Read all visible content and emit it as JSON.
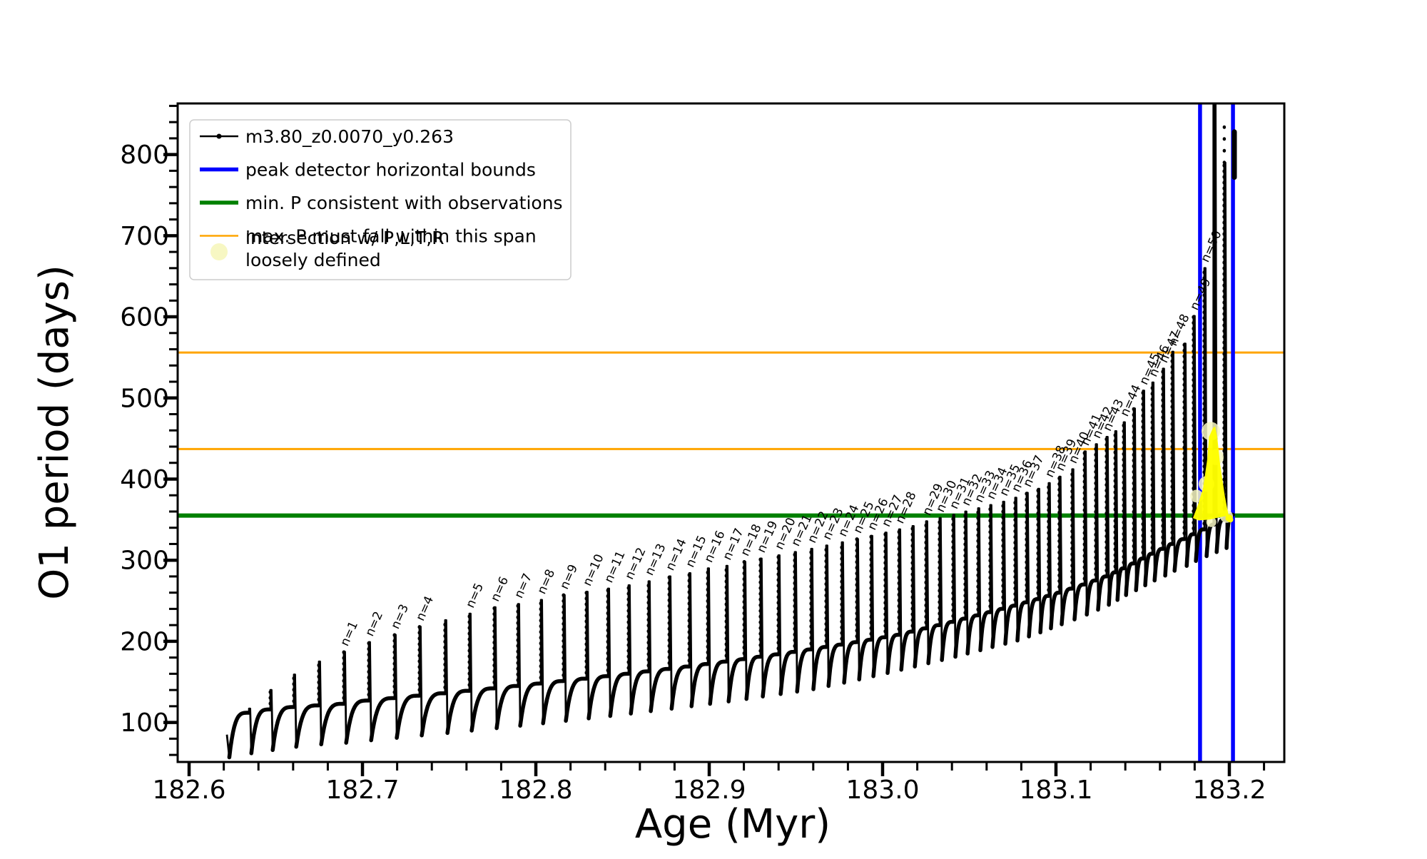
{
  "chart_data": {
    "type": "line",
    "title": "",
    "xlabel": "Age (Myr)",
    "ylabel": "O1 period (days)",
    "xlim": [
      182.5934,
      183.2317
    ],
    "ylim": [
      51.3,
      863
    ],
    "x_ticks": [
      182.6,
      182.7,
      182.8,
      182.9,
      183.0,
      183.1,
      183.2
    ],
    "x_minor_step": 0.02,
    "y_ticks": [
      100,
      200,
      300,
      400,
      500,
      600,
      700,
      800
    ],
    "y_minor_step": 20,
    "grid": false,
    "series_label": "m3.80_z0.0070_y0.263",
    "colors": {
      "track": "#000000",
      "peak_bounds": "#0000ff",
      "min_p": "#008000",
      "max_p": "#ffa500",
      "intersection": "#ffff00",
      "intersection_pale": "#f7f7c3"
    },
    "hlines": [
      {
        "value": 556,
        "color": "#ffa500",
        "lw": 3,
        "role": "max. P span upper"
      },
      {
        "value": 437,
        "color": "#ffa500",
        "lw": 3,
        "role": "max. P span lower"
      },
      {
        "value": 355,
        "color": "#008000",
        "lw": 6,
        "role": "min. P consistent with observations"
      }
    ],
    "vlines": [
      {
        "value": 183.1831,
        "color": "#0000ff",
        "lw": 5.5,
        "role": "peak detector left bound"
      },
      {
        "value": 183.2021,
        "color": "#0000ff",
        "lw": 5.5,
        "role": "peak detector right bound"
      }
    ],
    "start": {
      "age": 182.6218,
      "period": 85,
      "dip": 57
    },
    "pulse_format": [
      "age_Myr",
      "baseline_before",
      "peak",
      "dip_after",
      "label"
    ],
    "pulses": [
      [
        182.6346,
        112,
        117,
        62,
        ""
      ],
      [
        182.6469,
        116,
        140,
        66,
        ""
      ],
      [
        182.6605,
        119,
        159,
        70,
        ""
      ],
      [
        182.6749,
        121,
        175,
        73,
        ""
      ],
      [
        182.6893,
        123,
        187,
        75,
        "n=1"
      ],
      [
        182.7037,
        127,
        199,
        78,
        "n=2"
      ],
      [
        182.7185,
        130,
        208,
        81,
        "n=3"
      ],
      [
        182.7329,
        133,
        218,
        84,
        "n=4"
      ],
      [
        182.7477,
        136,
        226,
        87,
        ""
      ],
      [
        182.7617,
        139,
        234,
        90,
        "n=5"
      ],
      [
        182.7761,
        142,
        242,
        93,
        "n=6"
      ],
      [
        182.7897,
        145,
        246,
        96,
        "n=7"
      ],
      [
        182.8029,
        148,
        251,
        99,
        "n=8"
      ],
      [
        182.816,
        151,
        257,
        102,
        "n=9"
      ],
      [
        182.8292,
        154,
        261,
        105,
        "n=10"
      ],
      [
        182.8416,
        157,
        265,
        108,
        "n=11"
      ],
      [
        182.8535,
        160,
        269,
        111,
        "n=12"
      ],
      [
        182.865,
        163,
        274,
        114,
        "n=13"
      ],
      [
        182.877,
        166,
        280,
        117,
        "n=14"
      ],
      [
        182.8885,
        169,
        284,
        120,
        "n=15"
      ],
      [
        182.8992,
        172,
        290,
        123,
        "n=16"
      ],
      [
        182.9099,
        175,
        293,
        126,
        "n=17"
      ],
      [
        182.9202,
        178,
        298,
        129,
        "n=18"
      ],
      [
        182.9296,
        181,
        302,
        132,
        "n=19"
      ],
      [
        182.9399,
        184,
        306,
        135,
        "n=20"
      ],
      [
        182.9494,
        187,
        310,
        138,
        "n=21"
      ],
      [
        182.9588,
        190,
        314,
        141,
        "n=22"
      ],
      [
        182.9675,
        193,
        318,
        145,
        "n=23"
      ],
      [
        182.9765,
        196,
        322,
        149,
        "n=24"
      ],
      [
        182.9852,
        199,
        326,
        153,
        "n=25"
      ],
      [
        182.9934,
        202,
        330,
        157,
        "n=26"
      ],
      [
        183.0016,
        205,
        334,
        161,
        "n=27"
      ],
      [
        183.0095,
        208,
        338,
        165,
        "n=28"
      ],
      [
        183.0173,
        212,
        342,
        169,
        ""
      ],
      [
        183.0251,
        216,
        348,
        173,
        "n=29"
      ],
      [
        183.0329,
        220,
        352,
        177,
        "n=30"
      ],
      [
        183.0407,
        224,
        356,
        181,
        "n=31"
      ],
      [
        183.0477,
        228,
        360,
        185,
        "n=32"
      ],
      [
        183.0551,
        232,
        364,
        189,
        "n=33"
      ],
      [
        183.0621,
        236,
        368,
        193,
        "n=34"
      ],
      [
        183.0695,
        240,
        372,
        197,
        "n=35"
      ],
      [
        183.0765,
        244,
        377,
        201,
        "n=36"
      ],
      [
        183.0831,
        248,
        383,
        206,
        "n=37"
      ],
      [
        183.0897,
        252,
        388,
        211,
        ""
      ],
      [
        183.0958,
        256,
        395,
        216,
        "n=38"
      ],
      [
        183.102,
        260,
        403,
        221,
        "n=39"
      ],
      [
        183.1094,
        265,
        412,
        227,
        "n=40"
      ],
      [
        183.1165,
        270,
        434,
        233,
        "n=41"
      ],
      [
        183.123,
        275,
        443,
        239,
        "n=42"
      ],
      [
        183.1292,
        280,
        452,
        245,
        "n=43"
      ],
      [
        183.1342,
        285,
        459,
        251,
        ""
      ],
      [
        183.1391,
        290,
        470,
        257,
        "n=44"
      ],
      [
        183.1449,
        296,
        487,
        263,
        ""
      ],
      [
        183.1502,
        302,
        509,
        269,
        "n=45"
      ],
      [
        183.1556,
        308,
        519,
        275,
        "n=46"
      ],
      [
        183.1617,
        314,
        536,
        281,
        "n=47"
      ],
      [
        183.1671,
        320,
        557,
        287,
        "n=48"
      ],
      [
        183.1741,
        326,
        567,
        293,
        ""
      ],
      [
        183.1794,
        332,
        601,
        299,
        "n=49"
      ],
      [
        183.1856,
        338,
        660,
        305,
        "n=50"
      ],
      [
        183.1914,
        344,
        862,
        310,
        ""
      ],
      [
        183.1971,
        350,
        790,
        315,
        ""
      ]
    ],
    "track_end": {
      "age": 183.2021,
      "period": 356
    },
    "sparse_dots_above": {
      "age": 183.1971,
      "from": 790,
      "to": 848
    },
    "clipped_top_segment": {
      "age": 183.2029,
      "from": 772,
      "to": 828
    },
    "intersection_blob": {
      "polygon": [
        [
          183.179,
          352
        ],
        [
          183.1823,
          349
        ],
        [
          183.1885,
          350
        ],
        [
          183.1947,
          353
        ],
        [
          183.1996,
          355
        ],
        [
          183.1975,
          378
        ],
        [
          183.1947,
          418
        ],
        [
          183.193,
          452
        ],
        [
          183.1918,
          465
        ],
        [
          183.1906,
          463
        ],
        [
          183.1883,
          452
        ],
        [
          183.1872,
          424
        ],
        [
          183.1848,
          388
        ],
        [
          183.1815,
          366
        ]
      ],
      "pale_dots": [
        [
          183.1893,
          459,
          13
        ],
        [
          183.1922,
          427,
          11
        ],
        [
          183.1868,
          394,
          11
        ],
        [
          183.1811,
          379,
          9
        ],
        [
          183.1984,
          354,
          9
        ],
        [
          183.1896,
          347,
          7
        ]
      ],
      "bright_dots": [
        [
          183.1998,
          352,
          5
        ],
        [
          183.2006,
          350,
          4
        ]
      ]
    }
  },
  "legend": {
    "entries": [
      {
        "marker": "line-dot",
        "color": "#000000",
        "lw": 2.5,
        "label": "m3.80_z0.0070_y0.263"
      },
      {
        "marker": "line",
        "color": "#0000ff",
        "lw": 5.5,
        "label": "peak detector horizontal bounds"
      },
      {
        "marker": "line",
        "color": "#008000",
        "lw": 5.5,
        "label": "min. P consistent with observations"
      },
      {
        "marker": "line",
        "color": "#ffa500",
        "lw": 2.5,
        "label": "max. P must fall within this span"
      },
      {
        "marker": "circle",
        "color": "#f7f7c3",
        "lw": 0,
        "label": "intersection w/ P,L,T,R",
        "label2": "loosely defined"
      }
    ]
  }
}
